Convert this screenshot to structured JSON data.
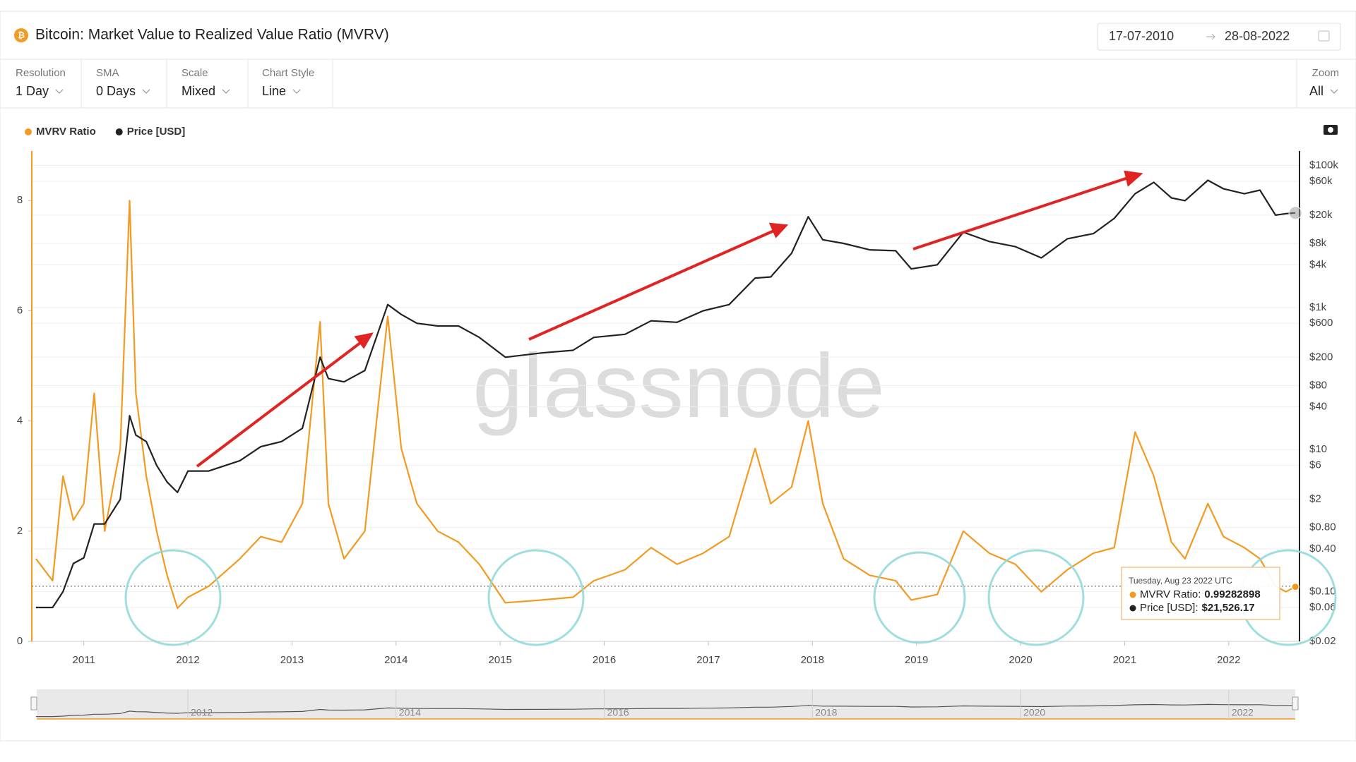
{
  "header": {
    "title": "Bitcoin: Market Value to Realized Value Ratio (MVRV)",
    "date_from": "17-07-2010",
    "date_to": "28-08-2022"
  },
  "controls": [
    {
      "label": "Resolution",
      "value": "1 Day"
    },
    {
      "label": "SMA",
      "value": "0 Days"
    },
    {
      "label": "Scale",
      "value": "Mixed"
    },
    {
      "label": "Chart Style",
      "value": "Line"
    }
  ],
  "zoom": {
    "label": "Zoom",
    "value": "All"
  },
  "watermark": "glassnode",
  "chart_data": {
    "type": "line",
    "legend": "top-left",
    "grid": true,
    "y2scale": "log",
    "hline": 1,
    "xlim": [
      2010.5,
      2022.68
    ],
    "xticks": [
      2011,
      2012,
      2013,
      2014,
      2015,
      2016,
      2017,
      2018,
      2019,
      2020,
      2021,
      2022
    ],
    "ylim": [
      0,
      8.9
    ],
    "yticks": [
      0,
      2,
      4,
      6,
      8
    ],
    "y2lim": [
      0.02,
      160000
    ],
    "y2ticks": [
      {
        "value": 100000,
        "label": "$100k"
      },
      {
        "value": 60000,
        "label": "$60k"
      },
      {
        "value": 20000,
        "label": "$20k"
      },
      {
        "value": 8000,
        "label": "$8k"
      },
      {
        "value": 4000,
        "label": "$4k"
      },
      {
        "value": 1000,
        "label": "$1k"
      },
      {
        "value": 600,
        "label": "$600"
      },
      {
        "value": 200,
        "label": "$200"
      },
      {
        "value": 80,
        "label": "$80"
      },
      {
        "value": 40,
        "label": "$40"
      },
      {
        "value": 10,
        "label": "$10"
      },
      {
        "value": 6,
        "label": "$6"
      },
      {
        "value": 2,
        "label": "$2"
      },
      {
        "value": 0.8,
        "label": "$0.80"
      },
      {
        "value": 0.4,
        "label": "$0.40"
      },
      {
        "value": 0.1,
        "label": "$0.10"
      },
      {
        "value": 0.06,
        "label": "$0.06"
      },
      {
        "value": 0.02,
        "label": "$0.02"
      }
    ],
    "x": [
      2010.54,
      2010.7,
      2010.8,
      2010.9,
      2011.0,
      2011.1,
      2011.2,
      2011.35,
      2011.44,
      2011.5,
      2011.6,
      2011.7,
      2011.8,
      2011.9,
      2012.0,
      2012.2,
      2012.5,
      2012.7,
      2012.9,
      2013.1,
      2013.27,
      2013.35,
      2013.5,
      2013.7,
      2013.92,
      2014.05,
      2014.2,
      2014.4,
      2014.6,
      2014.8,
      2015.05,
      2015.4,
      2015.7,
      2015.9,
      2016.2,
      2016.45,
      2016.7,
      2016.95,
      2017.2,
      2017.45,
      2017.6,
      2017.8,
      2017.96,
      2018.1,
      2018.3,
      2018.55,
      2018.8,
      2018.95,
      2019.2,
      2019.45,
      2019.7,
      2019.95,
      2020.2,
      2020.45,
      2020.7,
      2020.9,
      2021.1,
      2021.28,
      2021.45,
      2021.58,
      2021.8,
      2021.95,
      2022.15,
      2022.3,
      2022.45,
      2022.55,
      2022.64
    ],
    "series": [
      {
        "name": "MVRV Ratio",
        "color": "#f39a22",
        "axis": "y",
        "values": [
          1.5,
          1.1,
          3.0,
          2.2,
          2.5,
          4.5,
          2.0,
          3.5,
          8.0,
          4.5,
          3.0,
          2.0,
          1.2,
          0.6,
          0.8,
          1.0,
          1.5,
          1.9,
          1.8,
          2.5,
          5.8,
          2.5,
          1.5,
          2.0,
          5.9,
          3.5,
          2.5,
          2.0,
          1.8,
          1.4,
          0.7,
          0.75,
          0.8,
          1.1,
          1.3,
          1.7,
          1.4,
          1.6,
          1.9,
          3.5,
          2.5,
          2.8,
          4.0,
          2.5,
          1.5,
          1.2,
          1.1,
          0.75,
          0.85,
          2.0,
          1.6,
          1.4,
          0.9,
          1.3,
          1.6,
          1.7,
          3.8,
          3.0,
          1.8,
          1.5,
          2.5,
          1.9,
          1.7,
          1.5,
          1.0,
          0.9,
          0.99
        ]
      },
      {
        "name": "Price [USD]",
        "color": "#222222",
        "axis": "y2",
        "values": [
          0.06,
          0.06,
          0.1,
          0.25,
          0.3,
          0.9,
          0.9,
          2,
          30,
          16,
          13,
          6,
          3.5,
          2.5,
          5,
          5,
          7,
          11,
          13,
          20,
          200,
          100,
          90,
          130,
          1100,
          800,
          600,
          550,
          550,
          380,
          200,
          230,
          250,
          380,
          420,
          650,
          620,
          900,
          1100,
          2600,
          2700,
          5800,
          19000,
          9000,
          8000,
          6500,
          6300,
          3500,
          4000,
          11500,
          8500,
          7200,
          5000,
          9300,
          11000,
          18000,
          40000,
          58000,
          35000,
          32000,
          62000,
          47000,
          40000,
          45000,
          20000,
          21000,
          21526
        ]
      }
    ],
    "tooltip": {
      "date": "Tuesday, Aug 23 2022 UTC",
      "rows": [
        {
          "label": "MVRV Ratio:",
          "value": 0.99282898
        },
        {
          "label": "Price [USD]:",
          "value": 21526.17,
          "value_label": "$21,526.17"
        }
      ]
    }
  },
  "navigator": {
    "ticks": [
      2012,
      2014,
      2016,
      2018,
      2020,
      2022
    ]
  }
}
